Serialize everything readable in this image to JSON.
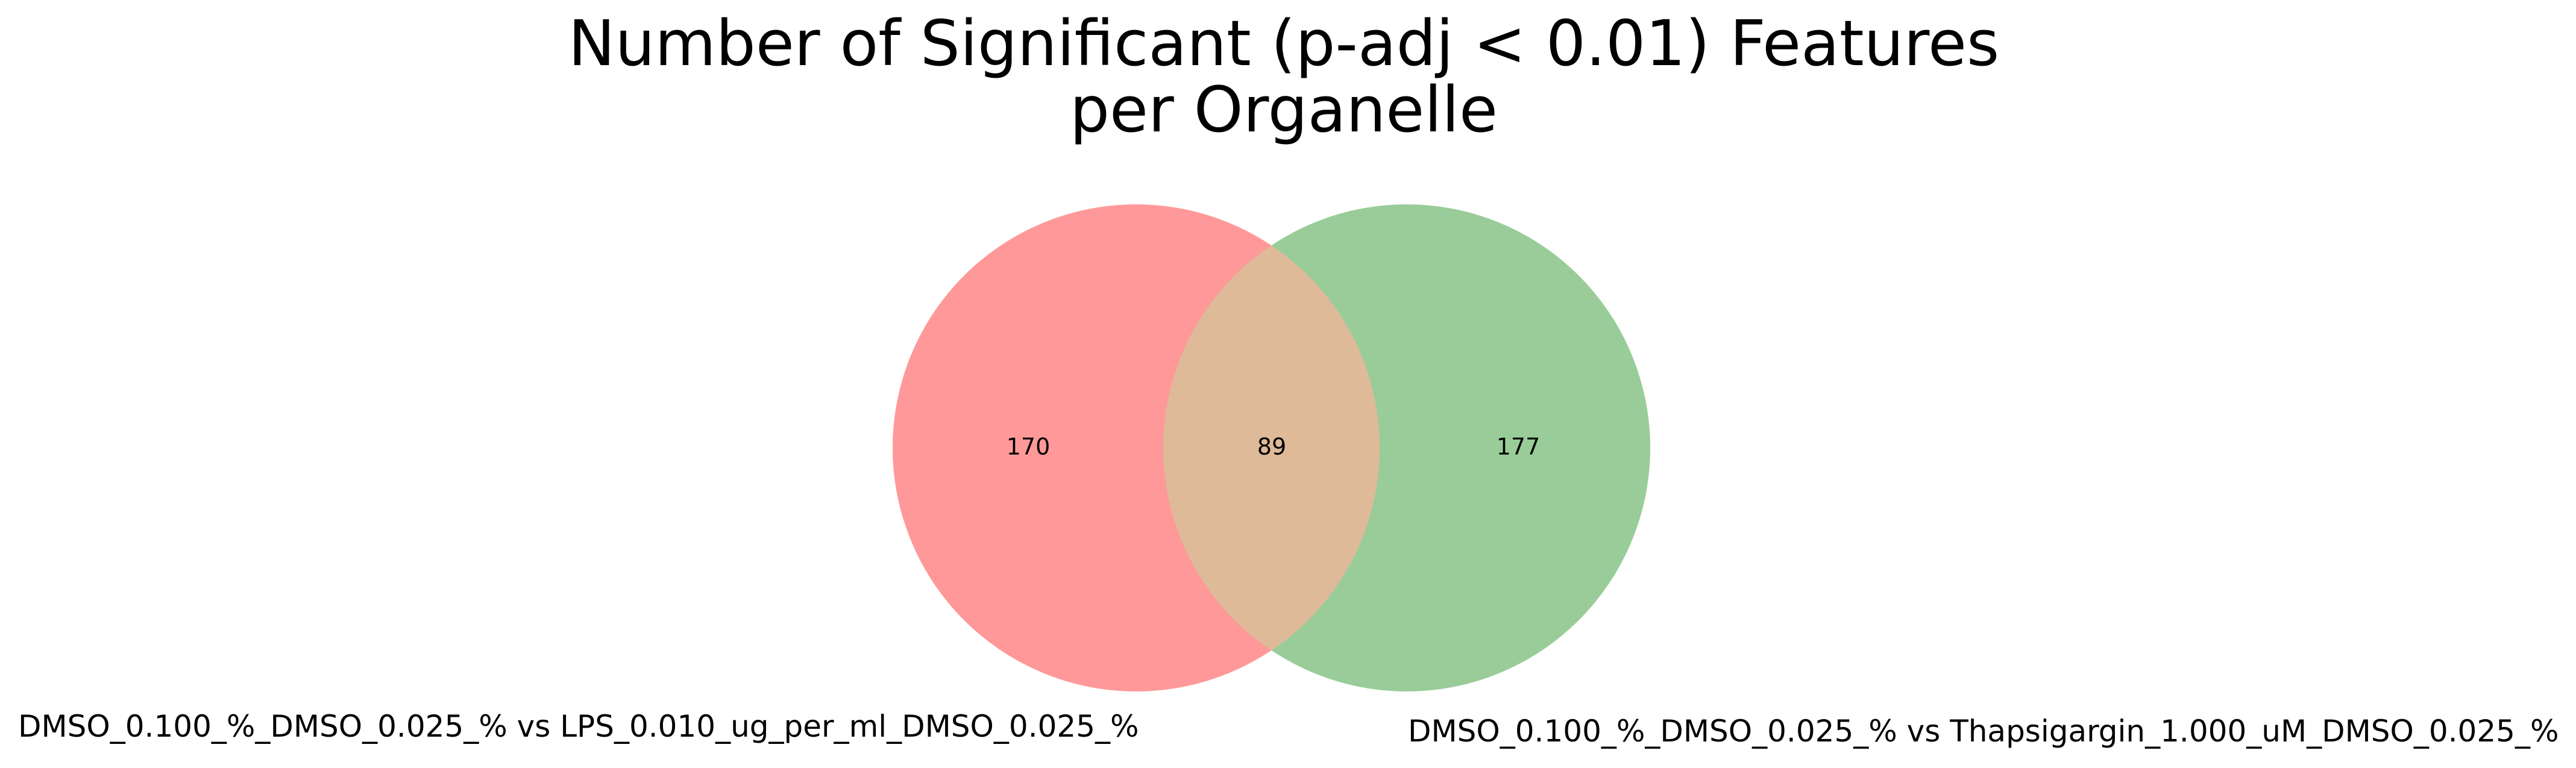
{
  "title": {
    "line1": "Number of Significant (p-adj < 0.01) Features",
    "line2": "per Organelle"
  },
  "venn": {
    "type": "venn2",
    "sets": [
      {
        "label": "DMSO_0.100_%_DMSO_0.025_% vs LPS_0.010_ug_per_ml_DMSO_0.025_%",
        "color": "#ff9999"
      },
      {
        "label": "DMSO_0.100_%_DMSO_0.025_% vs Thapsigargin_1.000_uM_DMSO_0.025_%",
        "color": "#99cc99"
      }
    ],
    "regions": {
      "left_only": "170",
      "intersection": "89",
      "right_only": "177"
    },
    "intersection_color": "#dfba98"
  }
}
